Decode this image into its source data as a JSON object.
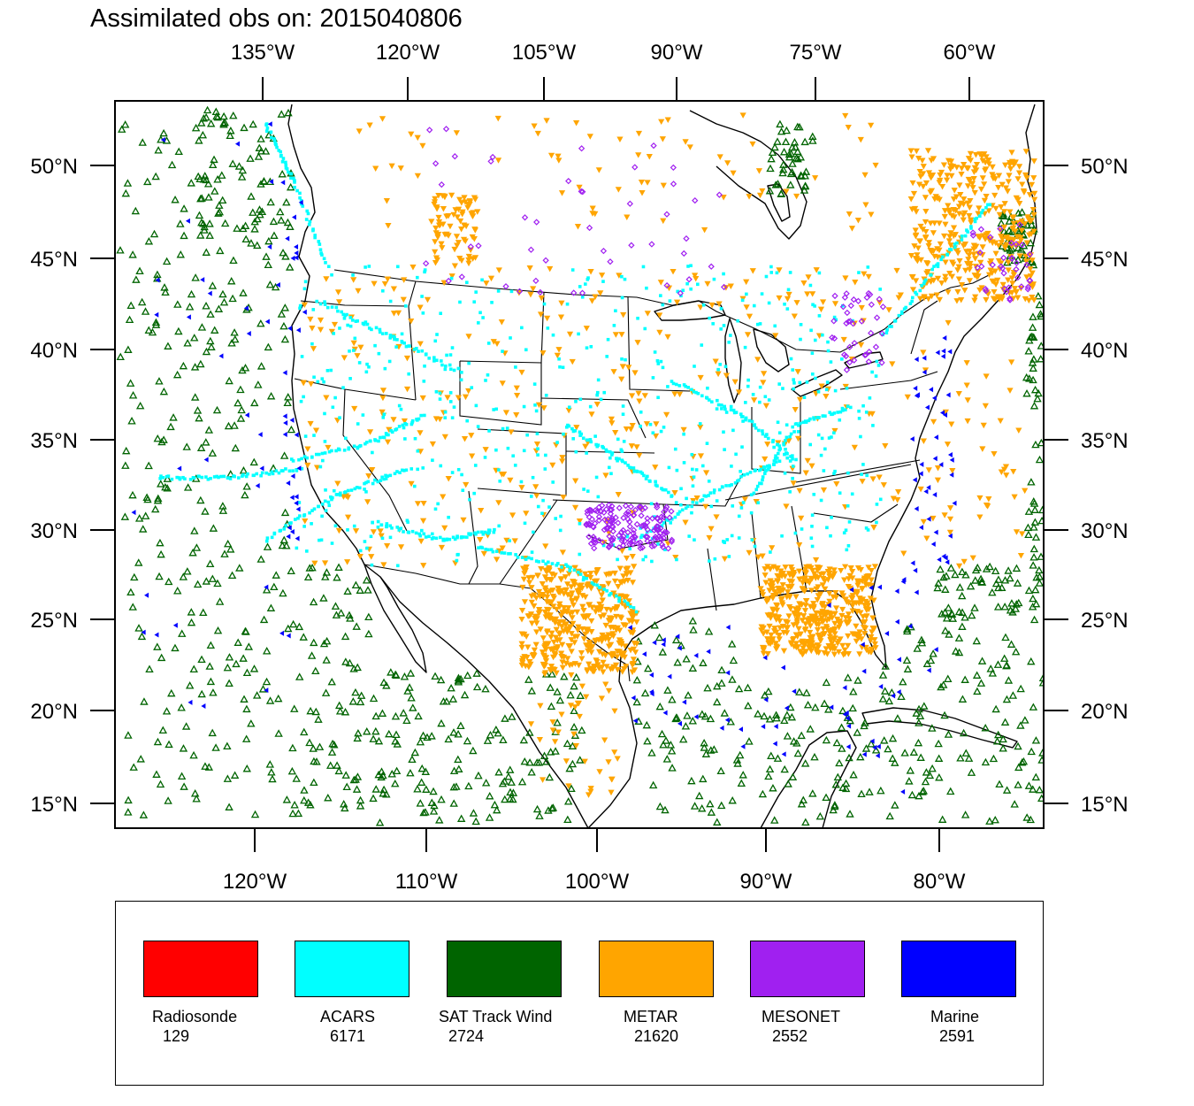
{
  "title": "Assimilated obs on: 2015040806",
  "map": {
    "top_axis_labels": [
      "135°W",
      "120°W",
      "105°W",
      "90°W",
      "75°W",
      "60°W"
    ],
    "bottom_axis_labels": [
      "120°W",
      "110°W",
      "100°W",
      "90°W",
      "80°W"
    ],
    "lat_labels": [
      "50°N",
      "45°N",
      "40°N",
      "35°N",
      "30°N",
      "25°N",
      "20°N",
      "15°N"
    ],
    "lon_range": [
      -128,
      -74
    ],
    "lat_range": [
      13.5,
      53.5
    ]
  },
  "colors": {
    "radiosonde": "#ff0000",
    "acars": "#00ffff",
    "sat_track_wind": "#006400",
    "metar": "#ffa500",
    "mesonet": "#a020f0",
    "marine": "#0000ff",
    "coastline": "#000000"
  },
  "legend": [
    {
      "name": "Radiosonde",
      "count": "129",
      "color": "#ff0000"
    },
    {
      "name": "ACARS",
      "count": "6171",
      "color": "#00ffff"
    },
    {
      "name": "SAT Track Wind",
      "count": "2724",
      "color": "#006400"
    },
    {
      "name": "METAR",
      "count": "21620",
      "color": "#ffa500"
    },
    {
      "name": "MESONET",
      "count": "2552",
      "color": "#a020f0"
    },
    {
      "name": "Marine",
      "count": "2591",
      "color": "#0000ff"
    }
  ]
}
